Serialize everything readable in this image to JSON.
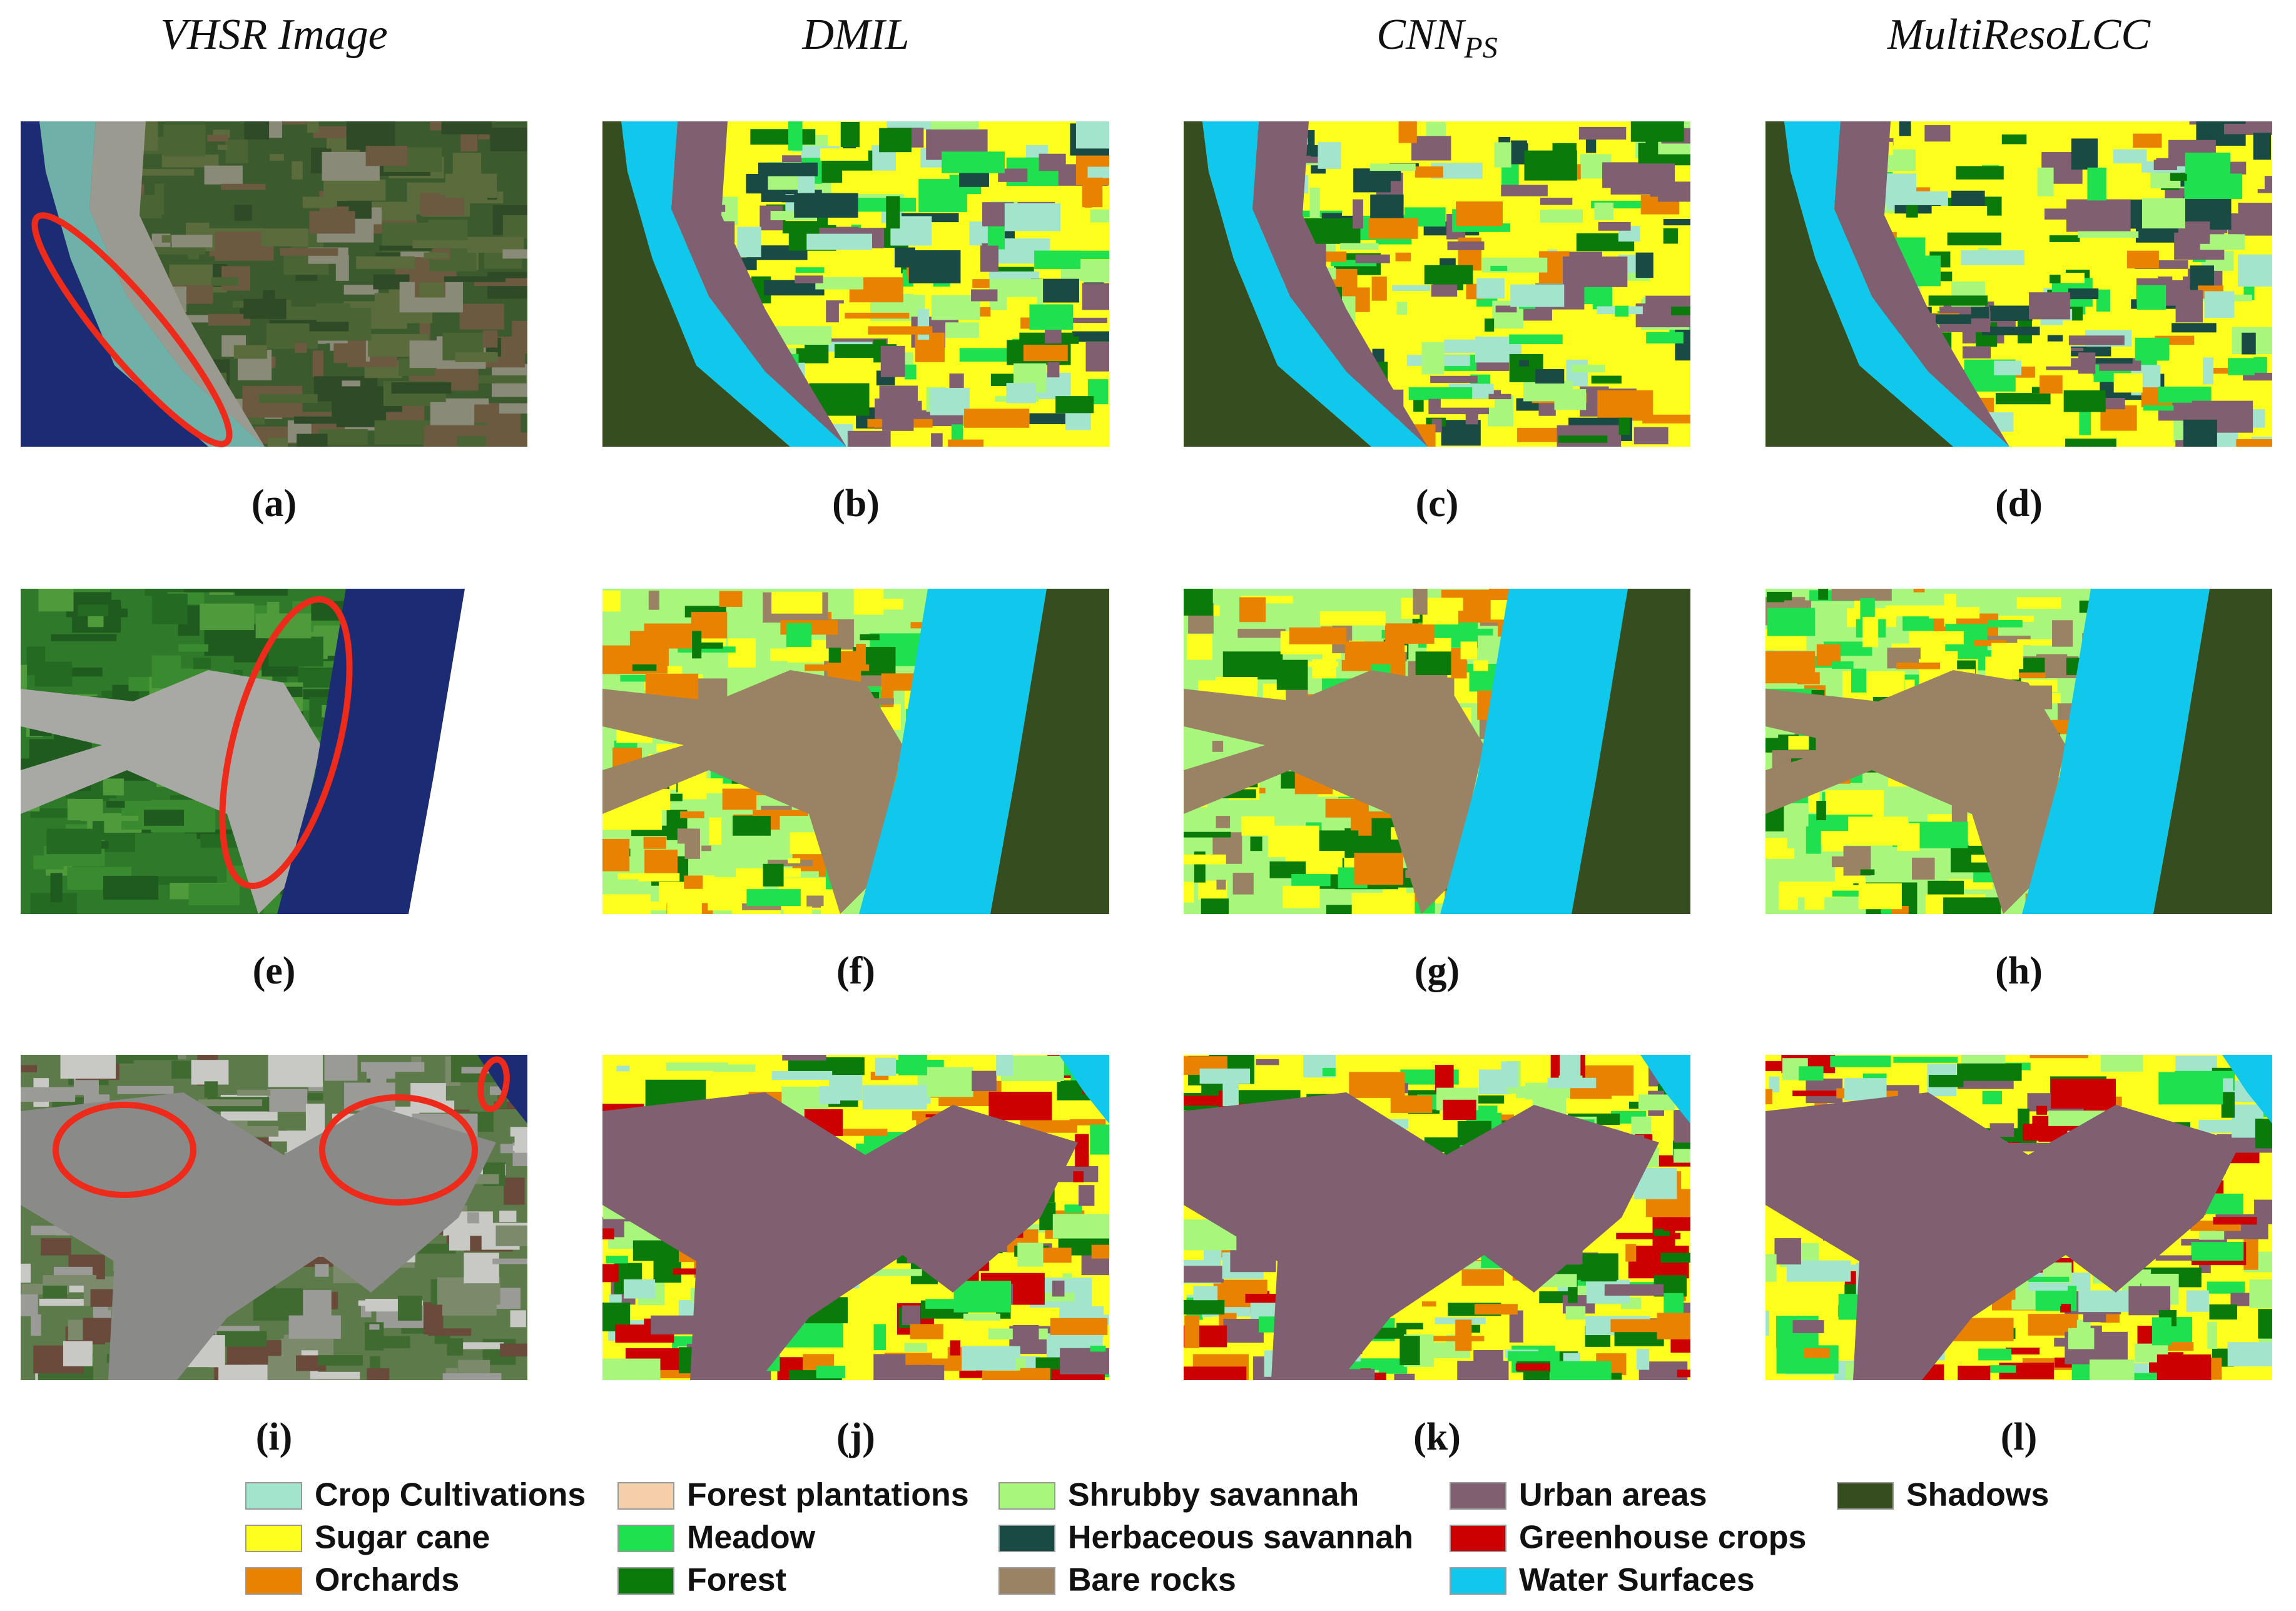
{
  "headers": [
    {
      "text": "VHSR Image"
    },
    {
      "text": "DMIL"
    },
    {
      "text": "CNN",
      "subscript": "PS"
    },
    {
      "text": "MultiResoLCC"
    }
  ],
  "panel_labels": [
    "(a)",
    "(b)",
    "(c)",
    "(d)",
    "(e)",
    "(f)",
    "(g)",
    "(h)",
    "(i)",
    "(j)",
    "(k)",
    "(l)"
  ],
  "legend": [
    {
      "name": "Crop Cultivations",
      "color": "#a3e4cc"
    },
    {
      "name": "Sugar cane",
      "color": "#ffff1e"
    },
    {
      "name": "Orchards",
      "color": "#e88200"
    },
    {
      "name": "Forest plantations",
      "color": "#f4cfa9"
    },
    {
      "name": "Meadow",
      "color": "#1fe04e"
    },
    {
      "name": "Forest",
      "color": "#0a7a0a"
    },
    {
      "name": "Shrubby savannah",
      "color": "#a8f77c"
    },
    {
      "name": "Herbaceous savannah",
      "color": "#1a4a44"
    },
    {
      "name": "Bare rocks",
      "color": "#9a8264"
    },
    {
      "name": "Urban areas",
      "color": "#7f5f70"
    },
    {
      "name": "Greenhouse crops",
      "color": "#cc0000"
    },
    {
      "name": "Water Surfaces",
      "color": "#10c8ec"
    },
    {
      "name": "Shadows",
      "color": "#354d1f"
    }
  ]
}
